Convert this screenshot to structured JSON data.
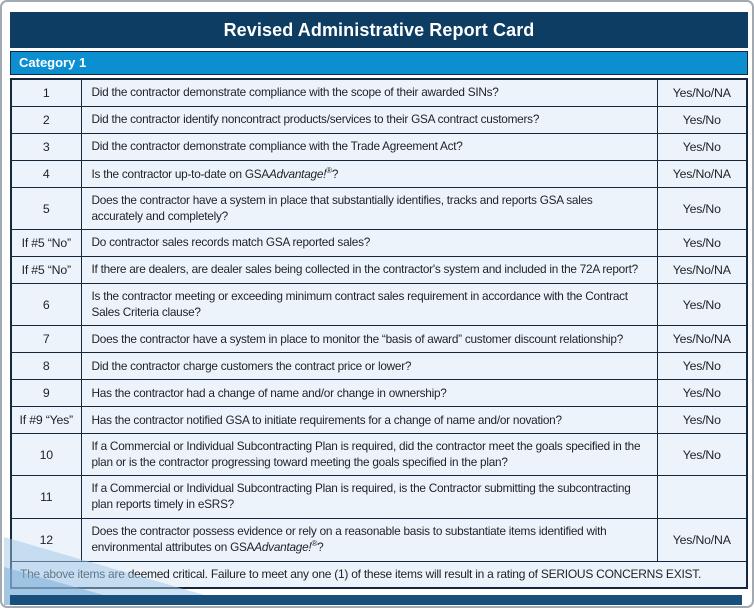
{
  "page": {
    "title": "Revised Administrative Report Card",
    "category_label": "Category 1",
    "footer_note": "The above items are deemed critical. Failure to meet any one (1) of these items will result in a rating of SERIOUS CONCERNS EXIST."
  },
  "colors": {
    "header_bg": "#0E3D63",
    "category_bg": "#0B8FD1",
    "row_bg": "#EDF3FA",
    "footer_bg": "#CFE3F4",
    "grid_border": "#14273C",
    "bottom_bar": "#194F7C",
    "text": "#1E2227"
  },
  "table": {
    "rows": [
      {
        "label": "1",
        "question": "Did the contractor demonstrate compliance with the scope of their awarded SINs?",
        "answer": "Yes/No/NA"
      },
      {
        "label": "2",
        "question": "Did the contractor identify noncontract products/services to their GSA contract customers?",
        "answer": "Yes/No"
      },
      {
        "label": "3",
        "question": "Did the contractor demonstrate compliance with the Trade Agreement Act?",
        "answer": "Yes/No"
      },
      {
        "label": "4",
        "question": "Is the contractor up-to-date on GSA[i]Advantage![/i][sup]®[/sup]?",
        "answer": "Yes/No/NA"
      },
      {
        "label": "5",
        "question": "Does the contractor have a system in place that substantially identifies, tracks and reports GSA sales accurately and completely?",
        "answer": "Yes/No"
      },
      {
        "label": "If #5 “No”",
        "question": "Do contractor sales records match GSA reported sales?",
        "answer": "Yes/No"
      },
      {
        "label": "If #5 “No”",
        "question": "If there are dealers, are dealer sales being collected in the contractor's system and included in the 72A report?",
        "answer": "Yes/No/NA"
      },
      {
        "label": "6",
        "question": "Is the contractor meeting or exceeding minimum contract sales requirement in accordance with the Contract Sales Criteria clause?",
        "answer": "Yes/No"
      },
      {
        "label": "7",
        "question": "Does the contractor have a system in place to monitor the “basis of award” customer discount relationship?",
        "answer": "Yes/No/NA"
      },
      {
        "label": "8",
        "question": "Did the contractor charge customers the contract price or lower?",
        "answer": "Yes/No"
      },
      {
        "label": "9",
        "question": "Has the contractor had a change of name and/or change in ownership?",
        "answer": "Yes/No"
      },
      {
        "label": "If #9 “Yes”",
        "question": "Has the contractor notified GSA to initiate requirements for a change of name and/or novation?",
        "answer": "Yes/No"
      },
      {
        "label": "10",
        "question": "If a Commercial or Individual Subcontracting Plan is required, did the contractor meet the goals specified in the plan or is the contractor progressing toward meeting the goals specified in the plan?",
        "answer": "Yes/No"
      },
      {
        "label": "11",
        "question": "If a Commercial or Individual Subcontracting Plan is required, is the Contractor submitting the subcontracting plan reports timely in eSRS?",
        "answer": ""
      },
      {
        "label": "12",
        "question": "Does the contractor possess evidence or rely on a reasonable basis to substantiate items identified with environmental attributes on GSA[i]Advantage![/i][sup]®[/sup]?",
        "answer": "Yes/No/NA"
      }
    ]
  }
}
